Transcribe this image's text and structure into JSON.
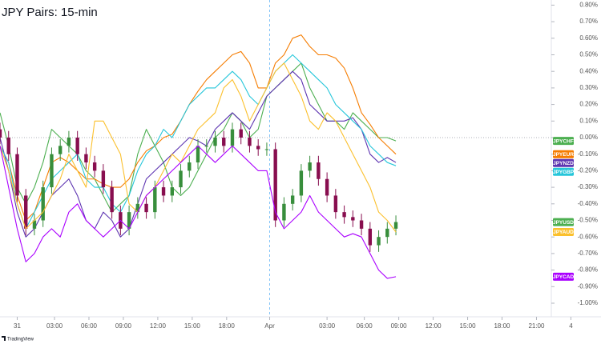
{
  "chart_data": {
    "type": "line",
    "title": "JPY Pairs: 15-min",
    "watermark": "TradingView",
    "x": [
      0,
      3,
      6,
      9,
      12,
      15,
      18,
      21,
      24,
      27,
      30,
      33,
      36,
      39,
      42,
      45,
      48,
      51,
      54,
      57,
      60,
      63,
      66,
      69,
      72,
      75,
      78,
      81,
      84,
      87,
      90,
      93,
      96,
      99,
      102,
      105,
      108,
      111,
      114,
      117,
      120,
      123,
      126,
      129,
      132,
      135,
      138
    ],
    "xlim": [
      0,
      200
    ],
    "xticks": [
      {
        "value": 6,
        "label": "31"
      },
      {
        "value": 19,
        "label": "03:00"
      },
      {
        "value": 31,
        "label": "06:00"
      },
      {
        "value": 43,
        "label": "09:00"
      },
      {
        "value": 55,
        "label": "12:00"
      },
      {
        "value": 67,
        "label": "15:00"
      },
      {
        "value": 79,
        "label": "18:00"
      },
      {
        "value": 94,
        "label": "Apr"
      },
      {
        "value": 114,
        "label": "03:00"
      },
      {
        "value": 127,
        "label": "06:00"
      },
      {
        "value": 139,
        "label": "09:00"
      },
      {
        "value": 151,
        "label": "12:00"
      },
      {
        "value": 163,
        "label": "15:00"
      },
      {
        "value": 175,
        "label": "18:00"
      },
      {
        "value": 187,
        "label": "21:00"
      },
      {
        "value": 199,
        "label": "4"
      }
    ],
    "ylim": [
      -1.0,
      0.8
    ],
    "yticks": [
      {
        "value": 0.8,
        "label": "0.80%"
      },
      {
        "value": 0.7,
        "label": "0.70%"
      },
      {
        "value": 0.6,
        "label": "0.60%"
      },
      {
        "value": 0.5,
        "label": "0.50%"
      },
      {
        "value": 0.4,
        "label": "0.40%"
      },
      {
        "value": 0.3,
        "label": "0.30%"
      },
      {
        "value": 0.2,
        "label": "0.20%"
      },
      {
        "value": 0.1,
        "label": "0.10%"
      },
      {
        "value": 0,
        "label": "0.00%"
      },
      {
        "value": -0.1,
        "label": "-0.10%"
      },
      {
        "value": -0.2,
        "label": "-0.20%"
      },
      {
        "value": -0.3,
        "label": "-0.30%"
      },
      {
        "value": -0.4,
        "label": "-0.40%"
      },
      {
        "value": -0.5,
        "label": "-0.50%"
      },
      {
        "value": -0.6,
        "label": "-0.60%"
      },
      {
        "value": -0.7,
        "label": "-0.70%"
      },
      {
        "value": -0.8,
        "label": "-0.80%"
      },
      {
        "value": -0.9,
        "label": "-0.90%"
      },
      {
        "value": -1.0,
        "label": "-1.00%"
      }
    ],
    "zero_line": true,
    "session_break": "Apr",
    "series": [
      {
        "name": "JPYCHF",
        "color": "#4caf50",
        "values": [
          0.15,
          -0.05,
          -0.3,
          -0.4,
          -0.3,
          -0.15,
          0.05,
          0.0,
          -0.05,
          -0.1,
          -0.2,
          -0.25,
          -0.35,
          -0.45,
          -0.4,
          -0.35,
          -0.1,
          0.05,
          -0.05,
          -0.15,
          -0.3,
          -0.35,
          -0.3,
          -0.2,
          -0.1,
          0.0,
          0.05,
          0.15,
          0.1,
          0.0,
          0.05,
          0.25,
          0.3,
          0.35,
          0.4,
          0.45,
          0.3,
          0.2,
          0.1,
          0.1,
          0.05,
          0.15,
          0.1,
          0.05,
          0.0,
          0.0,
          -0.02
        ]
      },
      {
        "name": "JPYEUR",
        "color": "#f57c00",
        "values": [
          -0.05,
          -0.15,
          -0.35,
          -0.5,
          -0.45,
          -0.3,
          -0.15,
          -0.12,
          -0.15,
          -0.2,
          -0.25,
          -0.25,
          -0.28,
          -0.3,
          -0.3,
          -0.25,
          -0.15,
          -0.08,
          -0.05,
          0.0,
          0.02,
          0.1,
          0.2,
          0.28,
          0.35,
          0.4,
          0.45,
          0.5,
          0.52,
          0.45,
          0.3,
          0.3,
          0.45,
          0.5,
          0.6,
          0.62,
          0.55,
          0.5,
          0.5,
          0.48,
          0.42,
          0.3,
          0.15,
          0.08,
          0.0,
          -0.05,
          -0.1
        ]
      },
      {
        "name": "JPYNZD",
        "color": "#5e35b1",
        "values": [
          0.0,
          -0.2,
          -0.45,
          -0.6,
          -0.55,
          -0.45,
          -0.35,
          -0.3,
          -0.25,
          -0.35,
          -0.5,
          -0.55,
          -0.45,
          -0.5,
          -0.6,
          -0.55,
          -0.4,
          -0.25,
          -0.2,
          -0.15,
          -0.1,
          -0.05,
          0.0,
          -0.02,
          -0.05,
          0.05,
          0.1,
          0.15,
          0.1,
          0.05,
          0.15,
          0.25,
          0.3,
          0.35,
          0.4,
          0.35,
          0.2,
          0.15,
          0.1,
          0.1,
          0.1,
          0.12,
          0.05,
          -0.1,
          -0.15,
          -0.12,
          -0.15
        ]
      },
      {
        "name": "JPYGBP",
        "color": "#26c6da",
        "values": [
          -0.05,
          -0.15,
          -0.4,
          -0.55,
          -0.45,
          -0.35,
          -0.25,
          -0.2,
          -0.15,
          -0.1,
          -0.25,
          -0.3,
          -0.3,
          -0.4,
          -0.45,
          -0.35,
          -0.2,
          -0.1,
          -0.05,
          0.05,
          0.0,
          0.1,
          0.2,
          0.25,
          0.3,
          0.3,
          0.35,
          0.4,
          0.35,
          0.25,
          0.2,
          0.3,
          0.4,
          0.45,
          0.5,
          0.45,
          0.4,
          0.35,
          0.3,
          0.2,
          0.15,
          0.1,
          0.05,
          -0.05,
          -0.1,
          -0.15,
          -0.17
        ]
      },
      {
        "name": "JPYUSD",
        "type": "candlestick",
        "color": "#4caf50",
        "up_color": "#388e3c",
        "down_color": "#880e4f",
        "open": [
          0.05,
          0.0,
          -0.1,
          -0.35,
          -0.55,
          -0.5,
          -0.3,
          -0.1,
          -0.05,
          0.0,
          -0.1,
          -0.15,
          -0.2,
          -0.3,
          -0.45,
          -0.55,
          -0.45,
          -0.4,
          -0.45,
          -0.3,
          -0.35,
          -0.3,
          -0.2,
          -0.15,
          -0.05,
          -0.05,
          0.0,
          -0.05,
          0.05,
          0.0,
          -0.05,
          -0.07,
          -0.07,
          -0.5,
          -0.4,
          -0.35,
          -0.2,
          -0.15,
          -0.25,
          -0.35,
          -0.45,
          -0.48,
          -0.5,
          -0.55,
          -0.65,
          -0.6,
          -0.55
        ],
        "high": [
          0.09,
          0.04,
          -0.06,
          -0.31,
          -0.46,
          -0.26,
          -0.06,
          -0.01,
          0.04,
          0.04,
          -0.06,
          -0.11,
          -0.16,
          -0.26,
          -0.41,
          -0.41,
          -0.36,
          -0.36,
          -0.26,
          -0.26,
          -0.26,
          -0.16,
          -0.11,
          -0.01,
          -0.01,
          0.04,
          0.04,
          0.09,
          0.09,
          0.04,
          -0.01,
          -0.03,
          -0.03,
          -0.36,
          -0.31,
          -0.16,
          -0.11,
          -0.11,
          -0.21,
          -0.31,
          -0.41,
          -0.44,
          -0.46,
          -0.51,
          -0.56,
          -0.51,
          -0.47
        ],
        "low": [
          -0.04,
          -0.14,
          -0.39,
          -0.59,
          -0.59,
          -0.54,
          -0.34,
          -0.14,
          -0.09,
          -0.14,
          -0.19,
          -0.24,
          -0.34,
          -0.49,
          -0.59,
          -0.59,
          -0.49,
          -0.49,
          -0.49,
          -0.39,
          -0.39,
          -0.34,
          -0.24,
          -0.19,
          -0.09,
          -0.09,
          -0.09,
          -0.09,
          -0.04,
          -0.09,
          -0.11,
          -0.11,
          -0.54,
          -0.54,
          -0.44,
          -0.39,
          -0.24,
          -0.29,
          -0.39,
          -0.49,
          -0.52,
          -0.54,
          -0.59,
          -0.69,
          -0.69,
          -0.64,
          -0.59
        ],
        "close": [
          0.0,
          -0.1,
          -0.35,
          -0.55,
          -0.5,
          -0.3,
          -0.1,
          -0.05,
          0.0,
          -0.1,
          -0.15,
          -0.2,
          -0.3,
          -0.45,
          -0.55,
          -0.45,
          -0.4,
          -0.45,
          -0.3,
          -0.35,
          -0.3,
          -0.2,
          -0.15,
          -0.05,
          -0.05,
          0.0,
          -0.05,
          0.05,
          0.0,
          -0.05,
          -0.07,
          -0.07,
          -0.5,
          -0.4,
          -0.35,
          -0.2,
          -0.15,
          -0.25,
          -0.35,
          -0.45,
          -0.48,
          -0.5,
          -0.55,
          -0.65,
          -0.6,
          -0.55,
          -0.51
        ]
      },
      {
        "name": "JPYAUD",
        "color": "#fbc02d",
        "values": [
          -0.05,
          -0.2,
          -0.4,
          -0.55,
          -0.5,
          -0.45,
          -0.35,
          -0.25,
          -0.1,
          -0.2,
          -0.3,
          0.1,
          0.1,
          0.0,
          -0.1,
          -0.4,
          -0.45,
          -0.35,
          -0.3,
          -0.2,
          -0.1,
          -0.15,
          -0.05,
          0.05,
          0.1,
          0.15,
          0.3,
          0.35,
          0.25,
          0.1,
          0.2,
          0.3,
          0.4,
          0.45,
          0.35,
          0.25,
          0.1,
          0.05,
          0.15,
          0.1,
          0.0,
          -0.1,
          -0.2,
          -0.3,
          -0.45,
          -0.5,
          -0.57
        ]
      },
      {
        "name": "JPYCAD",
        "color": "#aa00ff",
        "values": [
          -0.05,
          -0.3,
          -0.55,
          -0.75,
          -0.7,
          -0.6,
          -0.55,
          -0.6,
          -0.45,
          -0.4,
          -0.5,
          -0.55,
          -0.6,
          -0.55,
          -0.5,
          -0.55,
          -0.45,
          -0.35,
          -0.3,
          -0.25,
          -0.2,
          -0.15,
          -0.1,
          -0.05,
          -0.1,
          -0.15,
          -0.1,
          -0.05,
          -0.1,
          -0.15,
          -0.2,
          -0.2,
          -0.45,
          -0.55,
          -0.5,
          -0.45,
          -0.35,
          -0.45,
          -0.5,
          -0.55,
          -0.6,
          -0.58,
          -0.6,
          -0.7,
          -0.8,
          -0.85,
          -0.84
        ]
      }
    ]
  }
}
